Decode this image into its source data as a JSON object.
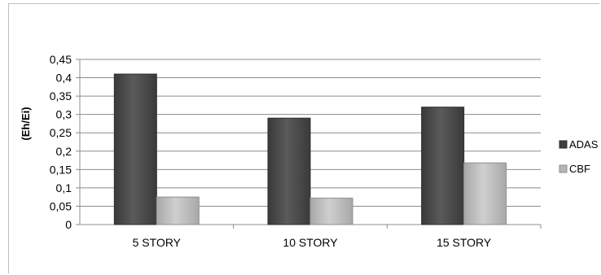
{
  "chart_data": {
    "type": "bar",
    "title": "",
    "xlabel": "",
    "ylabel": "(Eh/Ei)",
    "categories": [
      "5 STORY",
      "10 STORY",
      "15 STORY"
    ],
    "series": [
      {
        "name": "ADAS",
        "values": [
          0.41,
          0.29,
          0.32
        ],
        "color": "#4a4a4a"
      },
      {
        "name": "CBF",
        "values": [
          0.075,
          0.072,
          0.168
        ],
        "color": "#b8b8b8"
      }
    ],
    "ylim": [
      0,
      0.45
    ],
    "yticks": [
      "0",
      "0,05",
      "0,1",
      "0,15",
      "0,2",
      "0,25",
      "0,3",
      "0,35",
      "0,4",
      "0,45"
    ],
    "grid": true,
    "legend_position": "right"
  }
}
